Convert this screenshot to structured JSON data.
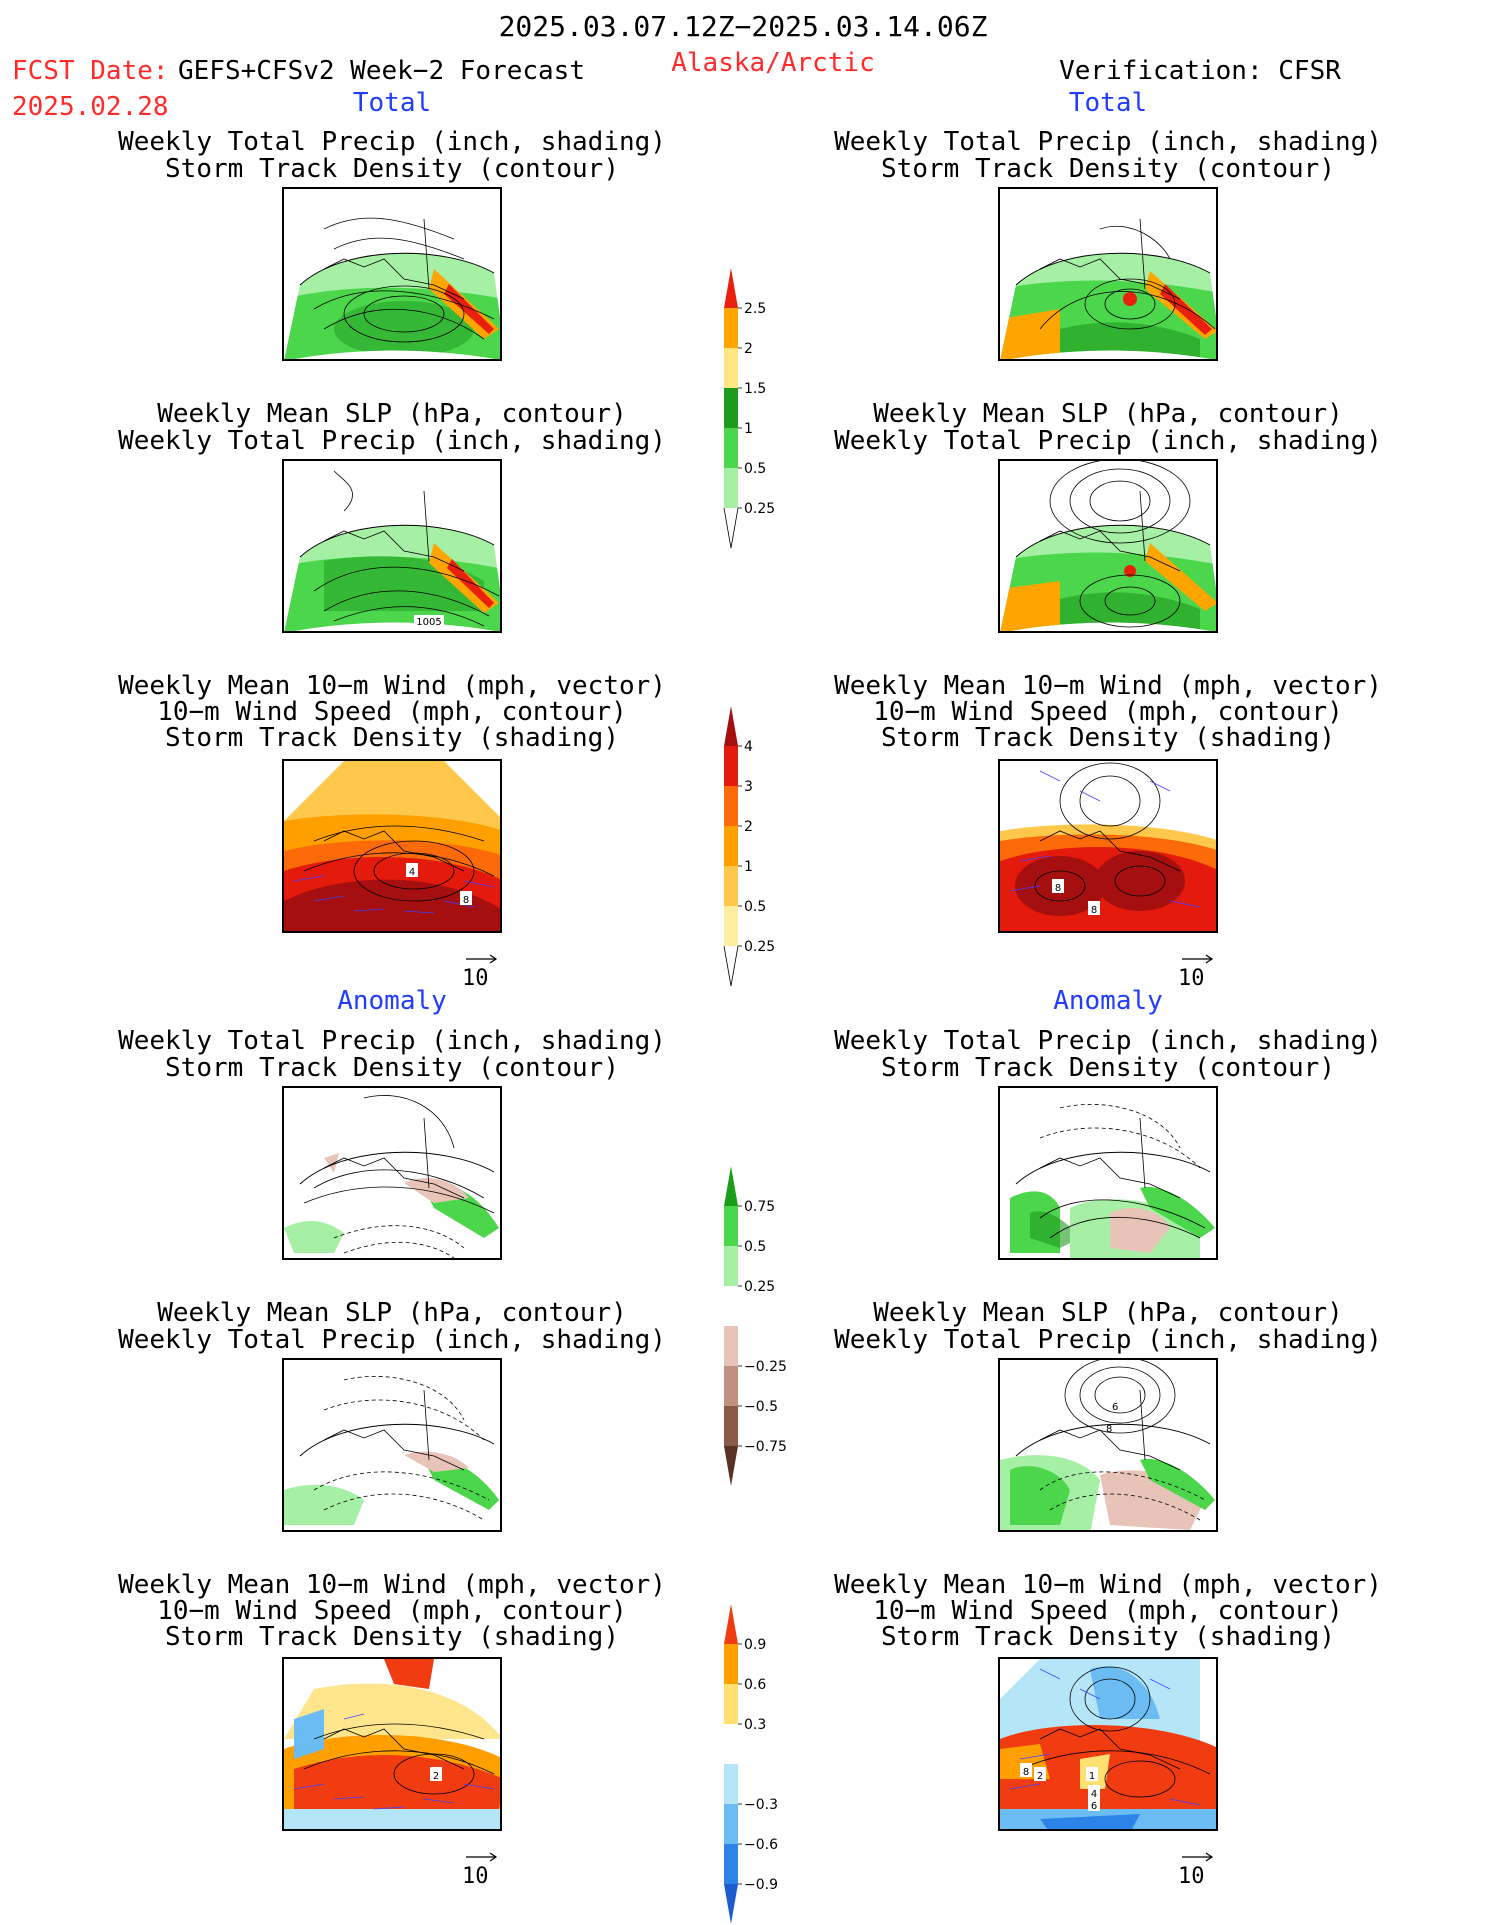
{
  "header": {
    "date_range": "2025.03.07.12Z−2025.03.14.06Z",
    "fcst_label": "FCST Date:",
    "fcst_model": "GEFS+CFSv2 Week−2 Forecast",
    "fcst_date": "2025.02.28",
    "region": "Alaska/Arctic",
    "verification": "Verification: CFSR"
  },
  "sections": {
    "total": "Total",
    "anomaly": "Anomaly"
  },
  "panel_titles": {
    "precip_storm": [
      "Weekly Total Precip (inch, shading)",
      "Storm Track Density (contour)"
    ],
    "slp_precip": [
      "Weekly Mean SLP (hPa, contour)",
      "Weekly Total Precip (inch, shading)"
    ],
    "wind_storm": [
      "Weekly Mean 10−m Wind (mph, vector)",
      "10−m Wind Speed (mph, contour)",
      "Storm Track Density (shading)"
    ]
  },
  "contour_labels": {
    "slp_total_left": "1005",
    "wind_total_left_a": "4",
    "wind_total_left_b": "8",
    "wind_total_right_a": "8",
    "wind_total_right_b": "8",
    "slp_anom_right_a": "6",
    "slp_anom_right_b": "8",
    "wind_anom_left": "2",
    "wind_anom_right_a": "8",
    "wind_anom_right_b": "2",
    "wind_anom_right_c": "1",
    "wind_anom_right_d": "4",
    "wind_anom_right_e": "6"
  },
  "vector_reference": "10",
  "colorbars": {
    "precip_total": {
      "labels": [
        "2.5",
        "2",
        "1.5",
        "1",
        "0.5",
        "0.25"
      ],
      "colors": [
        "#e8200d",
        "#ffa500",
        "#ffe680",
        "#1e9a1e",
        "#4cd64c",
        "#a6f0a6"
      ]
    },
    "storm_total": {
      "labels": [
        "4",
        "3",
        "2",
        "1",
        "0.5",
        "0.25"
      ],
      "colors": [
        "#a50f0f",
        "#e41a0c",
        "#fc6a0a",
        "#ffa000",
        "#ffc84a",
        "#ffeea0"
      ]
    },
    "precip_anom": {
      "labels": [
        "0.75",
        "0.5",
        "0.25",
        "−0.25",
        "−0.5",
        "−0.75"
      ],
      "colors": [
        "#1a9e1a",
        "#4cd64c",
        "#a6f0a6",
        "#ffffff",
        "#e8c4b8",
        "#c09080",
        "#8a5a48",
        "#5a3224"
      ]
    },
    "storm_anom": {
      "labels": [
        "0.9",
        "0.6",
        "0.3",
        "−0.3",
        "−0.6",
        "−0.9"
      ],
      "colors": [
        "#f03c10",
        "#ffa000",
        "#ffe070",
        "#ffffff",
        "#b4e6f8",
        "#6cbcf4",
        "#2c84e8",
        "#1c5cd0"
      ]
    }
  },
  "colors": {
    "title_red": "#ff2a2a",
    "section_blue": "#1f3cff",
    "vector_blue": "#4040ff"
  }
}
